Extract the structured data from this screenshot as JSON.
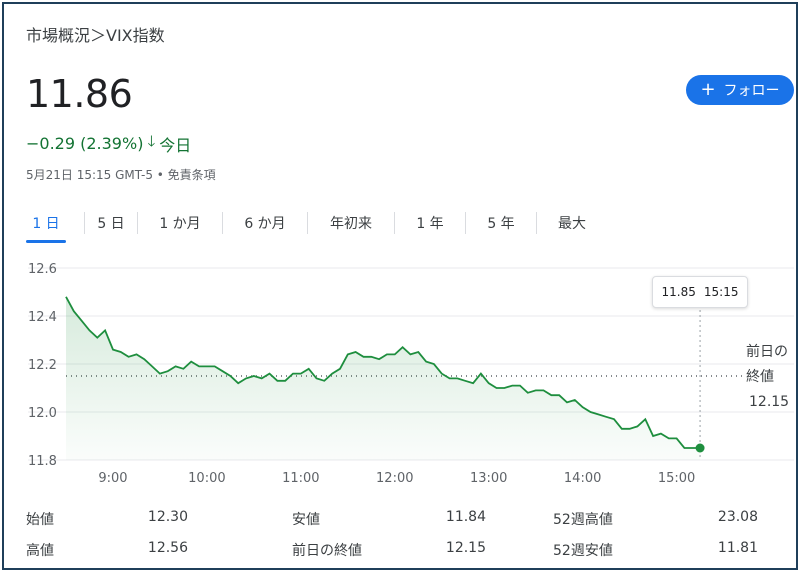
{
  "breadcrumb": "市場概況＞VIX指数",
  "price": "11.86",
  "change": "−0.29 (2.39%)",
  "change_period": "今日",
  "timestamp": "5月21日 15:15 GMT-5 • 免責条項",
  "follow_label": "フォロー",
  "tabs": [
    "1 日",
    "5 日",
    "1 か月",
    "6 か月",
    "年初来",
    "1 年",
    "5 年",
    "最大"
  ],
  "tooltip": {
    "value": "11.85",
    "time": "15:15"
  },
  "prev_close": {
    "label_line1": "前日の",
    "label_line2": "終値",
    "value": "12.15"
  },
  "stats": [
    {
      "label": "始値",
      "value": "12.30"
    },
    {
      "label": "安値",
      "value": "11.84"
    },
    {
      "label": "52週高値",
      "value": "23.08"
    },
    {
      "label": "高値",
      "value": "12.56"
    },
    {
      "label": "前日の終値",
      "value": "12.15"
    },
    {
      "label": "52週安値",
      "value": "11.81"
    }
  ],
  "colors": {
    "line": "#1e8e3e",
    "accent": "#1a73e8",
    "positive_text": "#137333"
  },
  "chart_data": {
    "type": "area",
    "xlabel": "",
    "ylabel": "",
    "x_ticks": [
      "9:00",
      "10:00",
      "11:00",
      "12:00",
      "13:00",
      "14:00",
      "15:00"
    ],
    "y_ticks": [
      "12.6",
      "12.4",
      "12.2",
      "12.0",
      "11.8"
    ],
    "xlim": [
      "8:30",
      "16:15"
    ],
    "ylim": [
      11.8,
      12.6
    ],
    "reference_line": 12.15,
    "grid": "horizontal",
    "series": [
      {
        "x": [
          "8:30",
          "8:35",
          "8:40",
          "8:45",
          "8:50",
          "8:55",
          "9:00",
          "9:05",
          "9:10",
          "9:15",
          "9:20",
          "9:25",
          "9:30",
          "9:35",
          "9:40",
          "9:45",
          "9:50",
          "9:55",
          "10:00",
          "10:05",
          "10:10",
          "10:15",
          "10:20",
          "10:25",
          "10:30",
          "10:35",
          "10:40",
          "10:45",
          "10:50",
          "10:55",
          "11:00",
          "11:05",
          "11:10",
          "11:15",
          "11:20",
          "11:25",
          "11:30",
          "11:35",
          "11:40",
          "11:45",
          "11:50",
          "11:55",
          "12:00",
          "12:05",
          "12:10",
          "12:15",
          "12:20",
          "12:25",
          "12:30",
          "12:35",
          "12:40",
          "12:45",
          "12:50",
          "12:55",
          "13:00",
          "13:05",
          "13:10",
          "13:15",
          "13:20",
          "13:25",
          "13:30",
          "13:35",
          "13:40",
          "13:45",
          "13:50",
          "13:55",
          "14:00",
          "14:05",
          "14:10",
          "14:15",
          "14:20",
          "14:25",
          "14:30",
          "14:35",
          "14:40",
          "14:45",
          "14:50",
          "14:55",
          "15:00",
          "15:05",
          "15:10",
          "15:15"
        ],
        "values": [
          12.48,
          12.42,
          12.38,
          12.34,
          12.31,
          12.34,
          12.26,
          12.25,
          12.23,
          12.24,
          12.22,
          12.19,
          12.16,
          12.17,
          12.19,
          12.18,
          12.21,
          12.19,
          12.19,
          12.19,
          12.17,
          12.15,
          12.12,
          12.14,
          12.15,
          12.14,
          12.16,
          12.13,
          12.13,
          12.16,
          12.16,
          12.18,
          12.14,
          12.13,
          12.16,
          12.18,
          12.24,
          12.25,
          12.23,
          12.23,
          12.22,
          12.24,
          12.24,
          12.27,
          12.24,
          12.25,
          12.21,
          12.2,
          12.16,
          12.14,
          12.14,
          12.13,
          12.12,
          12.16,
          12.12,
          12.1,
          12.1,
          12.11,
          12.11,
          12.08,
          12.09,
          12.09,
          12.07,
          12.07,
          12.04,
          12.05,
          12.02,
          12.0,
          11.99,
          11.98,
          11.97,
          11.93,
          11.93,
          11.94,
          11.97,
          11.9,
          11.91,
          11.89,
          11.89,
          11.85,
          11.85,
          11.85
        ]
      }
    ]
  }
}
